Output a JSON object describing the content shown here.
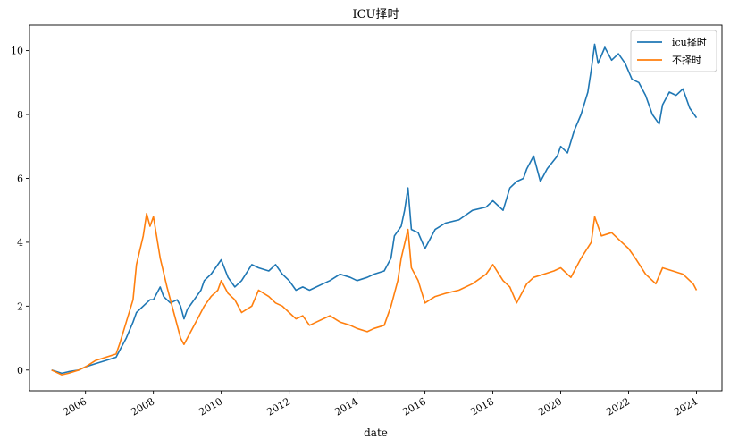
{
  "chart_data": {
    "type": "line",
    "title": "ICU择时",
    "xlabel": "date",
    "ylabel": "",
    "xlim": [
      2004.35,
      2024.75
    ],
    "ylim": [
      -0.65,
      10.8
    ],
    "x_ticks": [
      2006,
      2008,
      2010,
      2012,
      2014,
      2016,
      2018,
      2020,
      2022,
      2024
    ],
    "x_tick_labels": [
      "2006",
      "2008",
      "2010",
      "2012",
      "2014",
      "2016",
      "2018",
      "2020",
      "2022",
      "2024"
    ],
    "y_ticks": [
      0,
      2,
      4,
      6,
      8,
      10
    ],
    "y_tick_labels": [
      "0",
      "2",
      "4",
      "6",
      "8",
      "10"
    ],
    "legend_position": "top-right",
    "series": [
      {
        "name": "icu择时",
        "color": "#1f77b4",
        "x": [
          2005.0,
          2005.3,
          2005.5,
          2005.8,
          2006.0,
          2006.3,
          2006.6,
          2006.9,
          2007.0,
          2007.2,
          2007.4,
          2007.5,
          2007.7,
          2007.9,
          2008.0,
          2008.2,
          2008.3,
          2008.5,
          2008.7,
          2008.8,
          2008.9,
          2009.0,
          2009.2,
          2009.4,
          2009.5,
          2009.7,
          2009.9,
          2010.0,
          2010.2,
          2010.4,
          2010.6,
          2010.9,
          2011.1,
          2011.4,
          2011.6,
          2011.8,
          2012.0,
          2012.2,
          2012.4,
          2012.6,
          2012.8,
          2013.0,
          2013.2,
          2013.5,
          2013.8,
          2014.0,
          2014.3,
          2014.5,
          2014.8,
          2015.0,
          2015.1,
          2015.3,
          2015.4,
          2015.5,
          2015.6,
          2015.8,
          2016.0,
          2016.3,
          2016.6,
          2017.0,
          2017.4,
          2017.8,
          2018.0,
          2018.3,
          2018.5,
          2018.7,
          2018.9,
          2019.0,
          2019.2,
          2019.4,
          2019.6,
          2019.9,
          2020.0,
          2020.2,
          2020.4,
          2020.6,
          2020.8,
          2020.9,
          2021.0,
          2021.1,
          2021.3,
          2021.5,
          2021.7,
          2021.9,
          2022.1,
          2022.3,
          2022.5,
          2022.7,
          2022.9,
          2023.0,
          2023.2,
          2023.4,
          2023.6,
          2023.8,
          2024.0
        ],
        "values": [
          0.0,
          -0.1,
          -0.05,
          0.0,
          0.1,
          0.2,
          0.3,
          0.4,
          0.6,
          1.0,
          1.5,
          1.8,
          2.0,
          2.2,
          2.2,
          2.6,
          2.3,
          2.1,
          2.2,
          2.0,
          1.6,
          1.9,
          2.2,
          2.5,
          2.8,
          3.0,
          3.3,
          3.45,
          2.9,
          2.6,
          2.8,
          3.3,
          3.2,
          3.1,
          3.3,
          3.0,
          2.8,
          2.5,
          2.6,
          2.5,
          2.6,
          2.7,
          2.8,
          3.0,
          2.9,
          2.8,
          2.9,
          3.0,
          3.1,
          3.5,
          4.2,
          4.5,
          5.0,
          5.7,
          4.4,
          4.3,
          3.8,
          4.4,
          4.6,
          4.7,
          5.0,
          5.1,
          5.3,
          5.0,
          5.7,
          5.9,
          6.0,
          6.3,
          6.7,
          5.9,
          6.3,
          6.7,
          7.0,
          6.8,
          7.5,
          8.0,
          8.7,
          9.4,
          10.2,
          9.6,
          10.1,
          9.7,
          9.9,
          9.6,
          9.1,
          9.0,
          8.6,
          8.0,
          7.7,
          8.3,
          8.7,
          8.6,
          8.8,
          8.2,
          7.9
        ]
      },
      {
        "name": "不择时",
        "color": "#ff7f0e",
        "x": [
          2005.0,
          2005.3,
          2005.5,
          2005.8,
          2006.0,
          2006.3,
          2006.6,
          2006.9,
          2007.0,
          2007.2,
          2007.4,
          2007.5,
          2007.7,
          2007.8,
          2007.9,
          2008.0,
          2008.2,
          2008.4,
          2008.6,
          2008.8,
          2008.9,
          2009.1,
          2009.3,
          2009.5,
          2009.7,
          2009.9,
          2010.0,
          2010.2,
          2010.4,
          2010.6,
          2010.9,
          2011.1,
          2011.4,
          2011.6,
          2011.8,
          2012.0,
          2012.2,
          2012.4,
          2012.6,
          2012.8,
          2013.0,
          2013.2,
          2013.5,
          2013.8,
          2014.0,
          2014.3,
          2014.5,
          2014.8,
          2015.0,
          2015.2,
          2015.3,
          2015.5,
          2015.6,
          2015.8,
          2016.0,
          2016.3,
          2016.6,
          2017.0,
          2017.4,
          2017.8,
          2018.0,
          2018.3,
          2018.5,
          2018.7,
          2019.0,
          2019.2,
          2019.5,
          2019.8,
          2020.0,
          2020.3,
          2020.6,
          2020.9,
          2021.0,
          2021.2,
          2021.5,
          2021.8,
          2022.0,
          2022.2,
          2022.5,
          2022.8,
          2023.0,
          2023.3,
          2023.6,
          2023.9,
          2024.0
        ],
        "values": [
          0.0,
          -0.15,
          -0.1,
          0.0,
          0.1,
          0.3,
          0.4,
          0.5,
          0.8,
          1.5,
          2.2,
          3.3,
          4.2,
          4.9,
          4.5,
          4.8,
          3.5,
          2.6,
          1.8,
          1.0,
          0.8,
          1.2,
          1.6,
          2.0,
          2.3,
          2.5,
          2.8,
          2.4,
          2.2,
          1.8,
          2.0,
          2.5,
          2.3,
          2.1,
          2.0,
          1.8,
          1.6,
          1.7,
          1.4,
          1.5,
          1.6,
          1.7,
          1.5,
          1.4,
          1.3,
          1.2,
          1.3,
          1.4,
          2.0,
          2.8,
          3.5,
          4.4,
          3.2,
          2.8,
          2.1,
          2.3,
          2.4,
          2.5,
          2.7,
          3.0,
          3.3,
          2.8,
          2.6,
          2.1,
          2.7,
          2.9,
          3.0,
          3.1,
          3.2,
          2.9,
          3.5,
          4.0,
          4.8,
          4.2,
          4.3,
          4.0,
          3.8,
          3.5,
          3.0,
          2.7,
          3.2,
          3.1,
          3.0,
          2.7,
          2.5
        ]
      }
    ]
  }
}
